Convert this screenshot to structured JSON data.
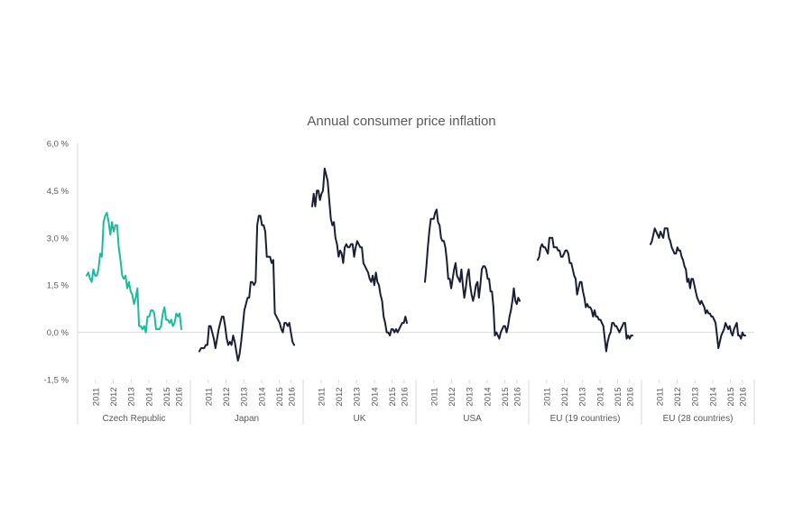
{
  "chart_data": {
    "type": "line",
    "title": "Annual consumer price inflation",
    "y_ticks": [
      "-1,5 %",
      "0,0 %",
      "1,5 %",
      "3,0 %",
      "4,5 %",
      "6,0 %"
    ],
    "ylim": [
      -1.5,
      6.0
    ],
    "grid": false,
    "legend": "none",
    "years": [
      "2011",
      "2012",
      "2013",
      "2014",
      "2015",
      "2016"
    ],
    "x_start": 2011.0,
    "x_end": 2016.33,
    "panels": [
      {
        "name": "Czech Republic",
        "color": "#1abc9c",
        "values": [
          1.8,
          1.9,
          1.7,
          1.6,
          2.0,
          1.8,
          1.8,
          2.0,
          2.5,
          2.4,
          3.5,
          3.7,
          3.8,
          3.5,
          3.1,
          3.5,
          3.2,
          3.4,
          3.4,
          2.7,
          2.3,
          1.8,
          1.7,
          1.8,
          1.4,
          1.6,
          1.3,
          1.2,
          0.9,
          1.1,
          1.4,
          0.2,
          0.2,
          0.1,
          0.2,
          0.0,
          0.5,
          0.5,
          0.7,
          0.7,
          0.6,
          0.1,
          0.1,
          0.1,
          0.2,
          0.6,
          0.8,
          0.4,
          0.4,
          0.3,
          0.4,
          0.2,
          0.3,
          0.6,
          0.5,
          0.6,
          0.1
        ]
      },
      {
        "name": "Japan",
        "color": "#1a1f33",
        "values": [
          -0.6,
          -0.5,
          -0.5,
          -0.5,
          -0.4,
          -0.4,
          0.2,
          0.2,
          0.0,
          -0.2,
          -0.5,
          -0.2,
          0.1,
          0.3,
          0.5,
          0.5,
          0.2,
          -0.2,
          -0.4,
          -0.3,
          -0.4,
          -0.1,
          -0.3,
          -0.6,
          -0.9,
          -0.7,
          -0.3,
          0.2,
          0.7,
          0.9,
          1.1,
          1.1,
          1.6,
          1.6,
          1.5,
          1.6,
          3.4,
          3.7,
          3.7,
          3.4,
          3.4,
          3.2,
          2.4,
          2.4,
          2.4,
          2.2,
          2.3,
          0.6,
          0.5,
          0.4,
          0.3,
          0.1,
          0.0,
          0.3,
          0.3,
          0.2,
          0.3,
          0.0,
          -0.3,
          -0.4
        ]
      },
      {
        "name": "UK",
        "color": "#1a1f33",
        "values": [
          4.0,
          4.4,
          4.0,
          4.5,
          4.5,
          4.2,
          4.4,
          4.5,
          5.2,
          5.0,
          4.8,
          4.2,
          3.6,
          3.4,
          3.5,
          3.0,
          2.8,
          2.4,
          2.6,
          2.5,
          2.2,
          2.7,
          2.8,
          2.7,
          2.7,
          2.8,
          2.8,
          2.4,
          2.7,
          2.9,
          2.8,
          2.7,
          2.7,
          2.2,
          2.1,
          2.0,
          1.9,
          1.7,
          1.6,
          1.8,
          1.5,
          1.9,
          1.6,
          1.5,
          1.2,
          1.0,
          0.5,
          0.3,
          0.0,
          0.0,
          -0.1,
          0.1,
          0.1,
          0.0,
          0.1,
          0.0,
          0.1,
          0.2,
          0.3,
          0.3,
          0.5,
          0.3
        ]
      },
      {
        "name": "USA",
        "color": "#1a1f33",
        "values": [
          1.6,
          2.1,
          2.7,
          3.2,
          3.6,
          3.6,
          3.6,
          3.8,
          3.9,
          3.5,
          3.4,
          3.0,
          2.9,
          2.9,
          2.7,
          2.3,
          1.7,
          1.7,
          1.4,
          1.7,
          2.0,
          2.2,
          1.8,
          1.7,
          1.6,
          2.0,
          1.5,
          1.1,
          1.4,
          1.8,
          2.0,
          1.5,
          1.2,
          1.0,
          1.2,
          1.5,
          1.6,
          1.1,
          1.5,
          2.0,
          2.1,
          2.1,
          2.0,
          1.7,
          1.7,
          1.3,
          1.3,
          0.8,
          -0.1,
          0.0,
          -0.1,
          -0.2,
          0.0,
          0.1,
          0.2,
          0.2,
          0.0,
          0.2,
          0.5,
          0.7,
          1.0,
          1.4,
          1.0,
          0.9,
          1.1,
          1.0
        ]
      },
      {
        "name": "EU (19 countries)",
        "color": "#1a1f33",
        "values": [
          2.3,
          2.4,
          2.7,
          2.8,
          2.7,
          2.7,
          2.6,
          2.5,
          3.0,
          3.0,
          3.0,
          2.7,
          2.7,
          2.7,
          2.6,
          2.6,
          2.4,
          2.4,
          2.5,
          2.6,
          2.6,
          2.5,
          2.2,
          2.2,
          2.0,
          1.8,
          1.7,
          1.2,
          1.4,
          1.6,
          1.6,
          1.3,
          1.1,
          0.8,
          0.9,
          0.8,
          0.8,
          0.7,
          0.5,
          0.7,
          0.5,
          0.5,
          0.4,
          0.4,
          0.3,
          0.2,
          -0.2,
          -0.6,
          -0.3,
          -0.1,
          0.0,
          0.3,
          0.3,
          0.2,
          0.2,
          0.1,
          0.0,
          0.1,
          0.2,
          0.3,
          0.3,
          -0.2,
          -0.1,
          -0.2,
          -0.1,
          -0.1
        ]
      },
      {
        "name": "EU (28 countries)",
        "color": "#1a1f33",
        "values": [
          2.8,
          2.9,
          3.1,
          3.3,
          3.2,
          3.1,
          3.0,
          3.2,
          3.1,
          3.0,
          3.3,
          3.3,
          3.3,
          3.0,
          2.9,
          2.7,
          2.6,
          2.5,
          2.5,
          2.7,
          2.6,
          2.6,
          2.4,
          2.3,
          2.1,
          2.0,
          1.6,
          1.7,
          1.4,
          1.7,
          1.7,
          1.5,
          1.3,
          1.1,
          1.0,
          0.9,
          1.0,
          0.9,
          0.8,
          0.6,
          0.7,
          0.6,
          0.6,
          0.5,
          0.5,
          0.4,
          0.3,
          -0.1,
          -0.5,
          -0.3,
          -0.1,
          0.0,
          0.1,
          0.3,
          0.2,
          0.1,
          0.2,
          0.0,
          -0.1,
          0.1,
          0.2,
          0.3,
          -0.1,
          -0.1,
          -0.2,
          0.0,
          -0.1,
          -0.1
        ]
      }
    ]
  }
}
